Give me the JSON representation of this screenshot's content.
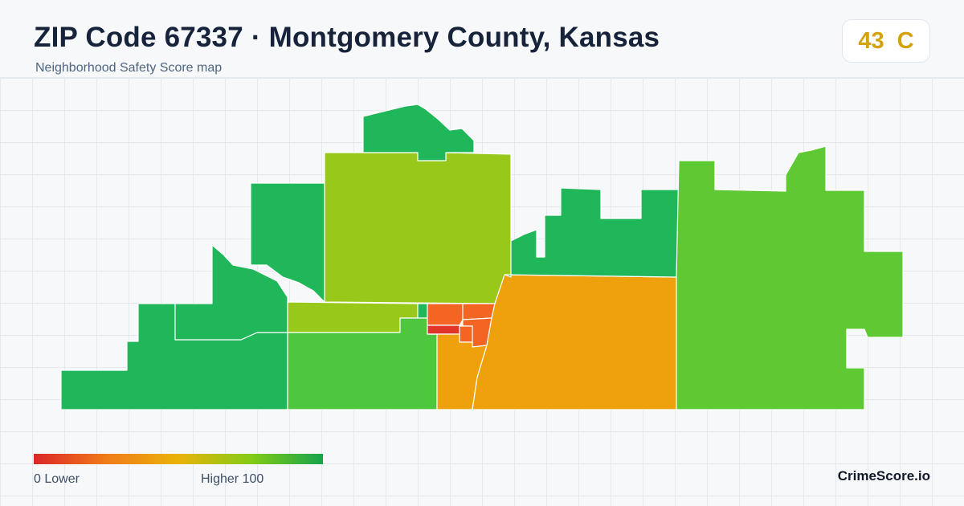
{
  "header": {
    "title": "ZIP Code 67337 · Montgomery County, Kansas",
    "subtitle": "Neighborhood Safety Score map"
  },
  "score": {
    "value": "43",
    "grade": "C",
    "color": "#d4a20a"
  },
  "legend": {
    "min_label": "0  Lower",
    "max_label": "Higher  100",
    "gradient_colors": [
      "#dc2626",
      "#f07b1a",
      "#eab308",
      "#84cc16",
      "#16a34a"
    ]
  },
  "brand": "CrimeScore.io",
  "map": {
    "colors": {
      "dark_green": "#20b75a",
      "medium_green": "#4cc73e",
      "yellow_green": "#97c81a",
      "bright_green": "#5ec933",
      "orange": "#eea10d",
      "red_orange": "#f26523",
      "red": "#e1362a"
    }
  }
}
